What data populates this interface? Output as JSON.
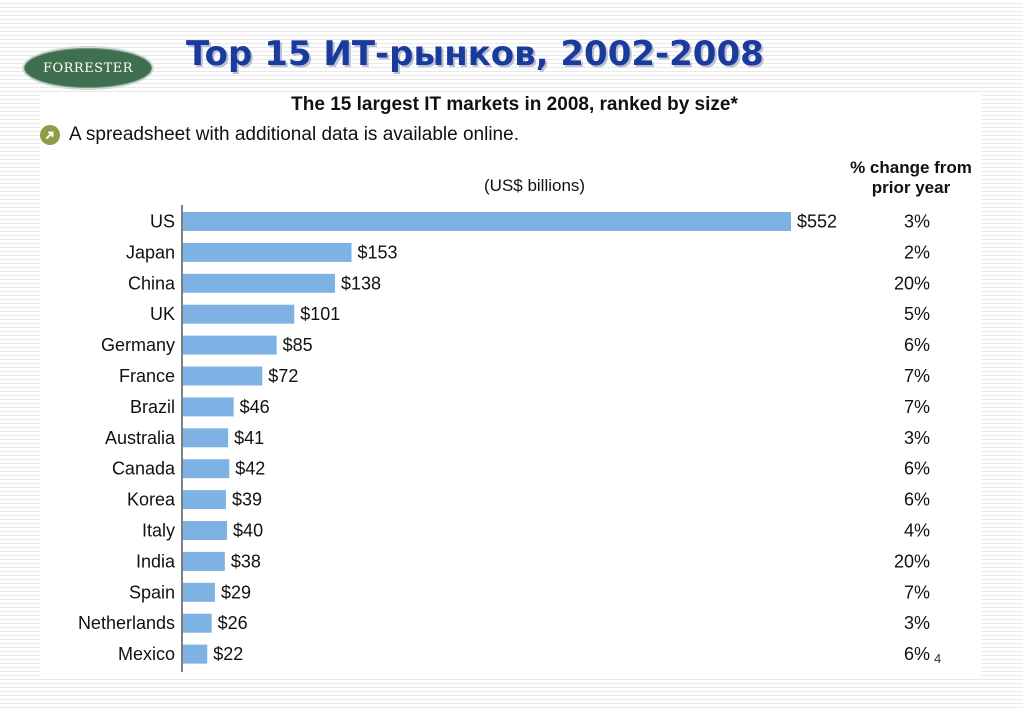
{
  "slide": {
    "title": "Top 15 ИТ-рынков, 2002-2008",
    "logo_text": "FORRESTER",
    "page_number": "4"
  },
  "note": {
    "text": "A spreadsheet with additional data is available online.",
    "icon": "arrow-icon"
  },
  "chart_data": {
    "type": "bar",
    "orientation": "horizontal",
    "title": "The 15 largest IT markets in 2008, ranked by size*",
    "units": "(US$ billions)",
    "pct_column_header": "% change from prior year",
    "categories": [
      "US",
      "Japan",
      "China",
      "UK",
      "Germany",
      "France",
      "Brazil",
      "Australia",
      "Canada",
      "Korea",
      "Italy",
      "India",
      "Spain",
      "Netherlands",
      "Mexico"
    ],
    "values": [
      552,
      153,
      138,
      101,
      85,
      72,
      46,
      41,
      42,
      39,
      40,
      38,
      29,
      26,
      22
    ],
    "value_labels": [
      "$552",
      "$153",
      "$138",
      "$101",
      "$85",
      "$72",
      "$46",
      "$41",
      "$42",
      "$39",
      "$40",
      "$38",
      "$29",
      "$26",
      "$22"
    ],
    "pct_change": [
      "3%",
      "2%",
      "20%",
      "5%",
      "6%",
      "7%",
      "7%",
      "3%",
      "6%",
      "6%",
      "4%",
      "20%",
      "7%",
      "3%",
      "6%"
    ],
    "bar_color": "#7eb2e4",
    "grid": false
  }
}
